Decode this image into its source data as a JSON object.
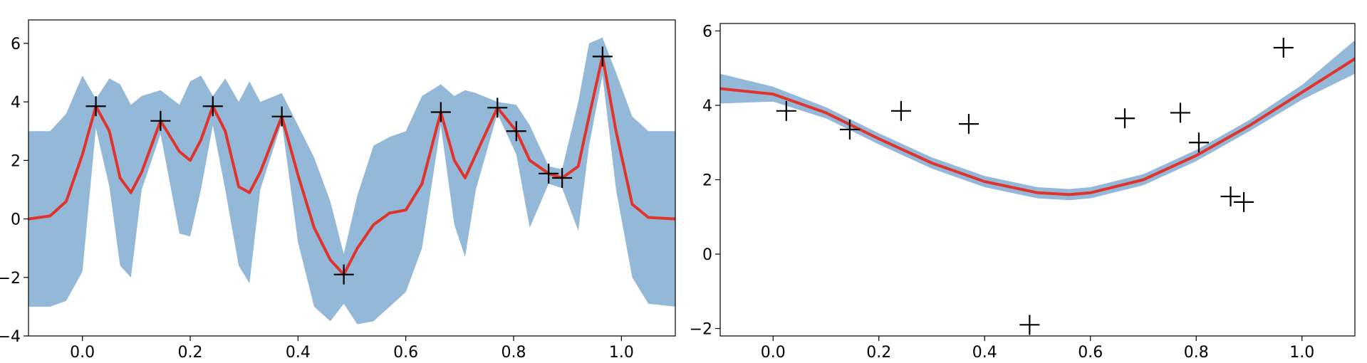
{
  "chart_data": [
    {
      "type": "line",
      "title": "",
      "xlabel": "",
      "ylabel": "",
      "xlim": [
        -0.1,
        1.1
      ],
      "ylim": [
        -4,
        6.8
      ],
      "xticks": [
        "0.0",
        "0.2",
        "0.4",
        "0.6",
        "0.8",
        "1.0"
      ],
      "yticks": [
        "−4",
        "−2",
        "0",
        "2",
        "4",
        "6"
      ],
      "grid": false,
      "colors": {
        "band": "#94b8d8",
        "mean": "#e0332b",
        "points": "#000000"
      },
      "observations": {
        "x": [
          0.025,
          0.145,
          0.242,
          0.37,
          0.485,
          0.665,
          0.77,
          0.805,
          0.865,
          0.89,
          0.965
        ],
        "y": [
          3.85,
          3.35,
          3.85,
          3.5,
          -1.9,
          3.65,
          3.8,
          3.0,
          1.55,
          1.4,
          5.55
        ]
      },
      "mean": {
        "x": [
          -0.1,
          -0.06,
          -0.03,
          0.0,
          0.025,
          0.05,
          0.07,
          0.09,
          0.11,
          0.145,
          0.18,
          0.2,
          0.22,
          0.242,
          0.265,
          0.29,
          0.31,
          0.33,
          0.37,
          0.4,
          0.43,
          0.46,
          0.485,
          0.51,
          0.54,
          0.57,
          0.6,
          0.63,
          0.665,
          0.69,
          0.71,
          0.73,
          0.77,
          0.805,
          0.83,
          0.865,
          0.89,
          0.92,
          0.94,
          0.965,
          0.99,
          1.02,
          1.05,
          1.1
        ],
        "y": [
          0.0,
          0.1,
          0.6,
          2.2,
          3.85,
          3.0,
          1.4,
          0.9,
          1.6,
          3.35,
          2.3,
          2.0,
          2.7,
          3.85,
          3.0,
          1.1,
          0.9,
          1.6,
          3.5,
          1.5,
          -0.3,
          -1.4,
          -1.9,
          -1.0,
          -0.2,
          0.2,
          0.3,
          1.2,
          3.65,
          2.0,
          1.4,
          2.2,
          3.8,
          3.0,
          2.0,
          1.55,
          1.4,
          1.8,
          3.5,
          5.55,
          3.0,
          0.5,
          0.05,
          0.0
        ]
      },
      "band": {
        "upper": [
          3.0,
          3.0,
          3.6,
          4.9,
          4.1,
          4.8,
          4.6,
          3.9,
          4.2,
          4.4,
          3.9,
          4.7,
          4.9,
          4.2,
          4.8,
          4.0,
          4.7,
          4.0,
          4.3,
          3.2,
          2.1,
          0.6,
          -1.2,
          0.8,
          2.5,
          2.8,
          3.0,
          4.2,
          4.6,
          4.2,
          4.4,
          4.3,
          4.0,
          3.9,
          3.2,
          1.8,
          1.7,
          4.0,
          6.0,
          6.2,
          5.0,
          3.5,
          3.0,
          3.0
        ],
        "lower": [
          -3.0,
          -3.0,
          -2.8,
          -1.8,
          3.1,
          1.1,
          -1.6,
          -2.0,
          1.0,
          2.9,
          -0.5,
          -0.6,
          1.0,
          3.2,
          1.0,
          -1.6,
          -2.2,
          1.0,
          3.3,
          -0.8,
          -3.0,
          -3.5,
          -2.9,
          -3.6,
          -3.5,
          -3.0,
          -2.5,
          -1.0,
          3.2,
          -0.2,
          -1.3,
          1.0,
          3.6,
          2.2,
          -0.3,
          1.2,
          1.05,
          -0.4,
          2.5,
          4.9,
          1.0,
          -2.0,
          -2.9,
          -3.0
        ]
      }
    },
    {
      "type": "line",
      "title": "",
      "xlabel": "",
      "ylabel": "",
      "xlim": [
        -0.1,
        1.1
      ],
      "ylim": [
        -2.2,
        6.2
      ],
      "xticks": [
        "0.0",
        "0.2",
        "0.4",
        "0.6",
        "0.8",
        "1.0"
      ],
      "yticks": [
        "−2",
        "0",
        "2",
        "4",
        "6"
      ],
      "grid": false,
      "colors": {
        "band": "#94b8d8",
        "mean": "#e0332b",
        "points": "#000000"
      },
      "observations": {
        "x": [
          0.025,
          0.145,
          0.242,
          0.37,
          0.485,
          0.665,
          0.77,
          0.805,
          0.865,
          0.89,
          0.965
        ],
        "y": [
          3.85,
          3.35,
          3.85,
          3.5,
          -1.9,
          3.65,
          3.8,
          3.0,
          1.55,
          1.4,
          5.55
        ]
      },
      "mean": {
        "x": [
          -0.1,
          0.0,
          0.1,
          0.2,
          0.3,
          0.4,
          0.5,
          0.56,
          0.6,
          0.7,
          0.8,
          0.9,
          1.0,
          1.1
        ],
        "y": [
          4.45,
          4.3,
          3.8,
          3.1,
          2.45,
          1.95,
          1.65,
          1.6,
          1.65,
          2.0,
          2.65,
          3.45,
          4.35,
          5.25
        ]
      },
      "band": {
        "upper": [
          4.85,
          4.5,
          3.95,
          3.25,
          2.6,
          2.1,
          1.8,
          1.75,
          1.8,
          2.15,
          2.8,
          3.6,
          4.55,
          5.75
        ],
        "lower": [
          4.05,
          4.1,
          3.65,
          2.95,
          2.3,
          1.8,
          1.5,
          1.45,
          1.5,
          1.85,
          2.5,
          3.3,
          4.15,
          4.85
        ]
      }
    }
  ]
}
